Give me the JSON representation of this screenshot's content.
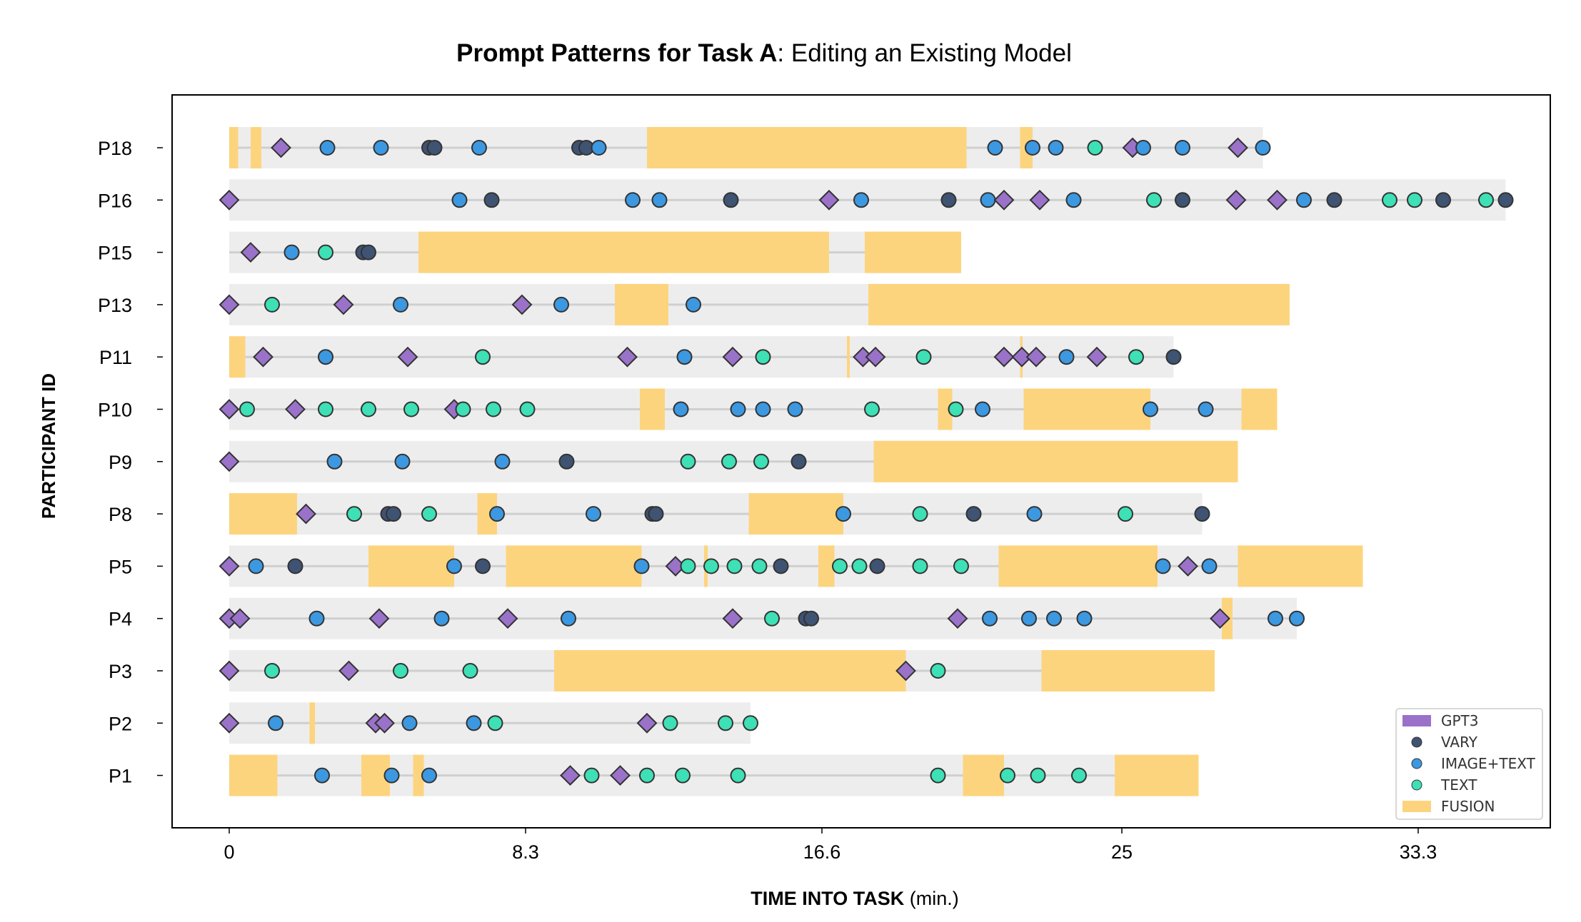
{
  "chart_data": {
    "type": "timeline",
    "title_bold": "Prompt Patterns for Task A",
    "title_rest": ": Editing an Existing Model",
    "xlabel_bold": "TIME INTO TASK",
    "xlabel_rest": " (min.)",
    "ylabel": "PARTICIPANT ID",
    "xlim": [
      -1.6,
      37.0
    ],
    "xticks": [
      0,
      8.3,
      16.6,
      25,
      33.3
    ],
    "xtick_labels": [
      "0",
      "8.3",
      "16.6",
      "25",
      "33.3"
    ],
    "colors": {
      "GPT3": "#9a72c9",
      "VARY": "#3f5373",
      "IMAGE+TEXT": "#3c98e0",
      "TEXT": "#3ee0b5",
      "FUSION": "#fdd47e",
      "band": "#ededed",
      "line": "#cfcfcf"
    },
    "legend": {
      "position": "bottom-right",
      "entries": [
        "GPT3",
        "VARY",
        "IMAGE+TEXT",
        "TEXT",
        "FUSION"
      ]
    },
    "participants": [
      {
        "id": "P18",
        "end": 28.95,
        "fusion": [
          [
            0,
            0.25
          ],
          [
            0.6,
            0.9
          ],
          [
            11.7,
            20.65
          ],
          [
            22.15,
            22.5
          ]
        ],
        "events": [
          [
            "GPT3",
            1.45
          ],
          [
            "IMAGE+TEXT",
            2.75
          ],
          [
            "IMAGE+TEXT",
            4.25
          ],
          [
            "VARY",
            5.6
          ],
          [
            "VARY",
            5.75
          ],
          [
            "IMAGE+TEXT",
            7.0
          ],
          [
            "VARY",
            9.8
          ],
          [
            "VARY",
            10.0
          ],
          [
            "IMAGE+TEXT",
            10.35
          ],
          [
            "IMAGE+TEXT",
            21.45
          ],
          [
            "IMAGE+TEXT",
            22.5
          ],
          [
            "IMAGE+TEXT",
            23.15
          ],
          [
            "TEXT",
            24.25
          ],
          [
            "GPT3",
            25.3
          ],
          [
            "IMAGE+TEXT",
            25.6
          ],
          [
            "IMAGE+TEXT",
            26.7
          ],
          [
            "GPT3",
            28.25
          ],
          [
            "IMAGE+TEXT",
            28.95
          ]
        ]
      },
      {
        "id": "P16",
        "end": 35.75,
        "fusion": [],
        "events": [
          [
            "GPT3",
            0.0
          ],
          [
            "IMAGE+TEXT",
            6.45
          ],
          [
            "VARY",
            7.35
          ],
          [
            "IMAGE+TEXT",
            11.3
          ],
          [
            "IMAGE+TEXT",
            12.05
          ],
          [
            "VARY",
            14.05
          ],
          [
            "GPT3",
            16.8
          ],
          [
            "IMAGE+TEXT",
            17.7
          ],
          [
            "VARY",
            20.15
          ],
          [
            "IMAGE+TEXT",
            21.25
          ],
          [
            "GPT3",
            21.7
          ],
          [
            "GPT3",
            22.7
          ],
          [
            "IMAGE+TEXT",
            23.65
          ],
          [
            "TEXT",
            25.9
          ],
          [
            "VARY",
            26.7
          ],
          [
            "GPT3",
            28.2
          ],
          [
            "GPT3",
            29.35
          ],
          [
            "IMAGE+TEXT",
            30.1
          ],
          [
            "VARY",
            30.95
          ],
          [
            "TEXT",
            32.5
          ],
          [
            "TEXT",
            33.2
          ],
          [
            "VARY",
            34.0
          ],
          [
            "TEXT",
            35.2
          ],
          [
            "VARY",
            35.75
          ]
        ]
      },
      {
        "id": "P15",
        "end": 20.5,
        "fusion": [
          [
            5.3,
            16.8
          ],
          [
            17.8,
            20.5
          ]
        ],
        "events": [
          [
            "GPT3",
            0.6
          ],
          [
            "IMAGE+TEXT",
            1.75
          ],
          [
            "TEXT",
            2.7
          ],
          [
            "VARY",
            3.75
          ],
          [
            "VARY",
            3.9
          ]
        ]
      },
      {
        "id": "P13",
        "end": 29.7,
        "fusion": [
          [
            10.8,
            12.3
          ],
          [
            17.9,
            29.7
          ]
        ],
        "events": [
          [
            "GPT3",
            0.0
          ],
          [
            "TEXT",
            1.2
          ],
          [
            "GPT3",
            3.2
          ],
          [
            "IMAGE+TEXT",
            4.8
          ],
          [
            "GPT3",
            8.2
          ],
          [
            "IMAGE+TEXT",
            9.3
          ],
          [
            "IMAGE+TEXT",
            13.0
          ]
        ]
      },
      {
        "id": "P11",
        "end": 26.45,
        "fusion": [
          [
            0,
            0.45
          ],
          [
            17.3,
            17.38
          ],
          [
            22.15,
            22.22
          ]
        ],
        "events": [
          [
            "GPT3",
            0.95
          ],
          [
            "IMAGE+TEXT",
            2.7
          ],
          [
            "GPT3",
            5.0
          ],
          [
            "TEXT",
            7.1
          ],
          [
            "GPT3",
            11.15
          ],
          [
            "IMAGE+TEXT",
            12.75
          ],
          [
            "GPT3",
            14.1
          ],
          [
            "TEXT",
            14.95
          ],
          [
            "GPT3",
            17.75
          ],
          [
            "GPT3",
            18.1
          ],
          [
            "TEXT",
            19.45
          ],
          [
            "GPT3",
            21.7
          ],
          [
            "GPT3",
            22.2
          ],
          [
            "GPT3",
            22.6
          ],
          [
            "IMAGE+TEXT",
            23.45
          ],
          [
            "GPT3",
            24.3
          ],
          [
            "TEXT",
            25.4
          ],
          [
            "VARY",
            26.45
          ]
        ]
      },
      {
        "id": "P10",
        "end": 29.35,
        "fusion": [
          [
            11.5,
            12.2
          ],
          [
            19.85,
            20.25
          ],
          [
            22.25,
            25.8
          ],
          [
            28.35,
            29.35
          ]
        ],
        "events": [
          [
            "GPT3",
            0.0
          ],
          [
            "TEXT",
            0.5
          ],
          [
            "GPT3",
            1.85
          ],
          [
            "TEXT",
            2.7
          ],
          [
            "TEXT",
            3.9
          ],
          [
            "TEXT",
            5.1
          ],
          [
            "GPT3",
            6.3
          ],
          [
            "TEXT",
            6.55
          ],
          [
            "TEXT",
            7.4
          ],
          [
            "TEXT",
            8.35
          ],
          [
            "IMAGE+TEXT",
            12.65
          ],
          [
            "IMAGE+TEXT",
            14.25
          ],
          [
            "IMAGE+TEXT",
            14.95
          ],
          [
            "IMAGE+TEXT",
            15.85
          ],
          [
            "TEXT",
            18.0
          ],
          [
            "TEXT",
            20.35
          ],
          [
            "IMAGE+TEXT",
            21.1
          ],
          [
            "IMAGE+TEXT",
            25.8
          ],
          [
            "IMAGE+TEXT",
            27.35
          ]
        ]
      },
      {
        "id": "P9",
        "end": 28.25,
        "fusion": [
          [
            18.05,
            28.25
          ]
        ],
        "events": [
          [
            "GPT3",
            0.0
          ],
          [
            "IMAGE+TEXT",
            2.95
          ],
          [
            "IMAGE+TEXT",
            4.85
          ],
          [
            "IMAGE+TEXT",
            7.65
          ],
          [
            "VARY",
            9.45
          ],
          [
            "TEXT",
            12.85
          ],
          [
            "TEXT",
            14.0
          ],
          [
            "TEXT",
            14.9
          ],
          [
            "VARY",
            15.95
          ]
        ]
      },
      {
        "id": "P8",
        "end": 27.25,
        "fusion": [
          [
            0,
            1.9
          ],
          [
            6.95,
            7.5
          ],
          [
            14.55,
            17.2
          ]
        ],
        "events": [
          [
            "GPT3",
            2.15
          ],
          [
            "TEXT",
            3.5
          ],
          [
            "VARY",
            4.45
          ],
          [
            "VARY",
            4.6
          ],
          [
            "TEXT",
            5.6
          ],
          [
            "IMAGE+TEXT",
            7.5
          ],
          [
            "IMAGE+TEXT",
            10.2
          ],
          [
            "VARY",
            11.85
          ],
          [
            "VARY",
            11.95
          ],
          [
            "IMAGE+TEXT",
            17.2
          ],
          [
            "TEXT",
            19.35
          ],
          [
            "VARY",
            20.85
          ],
          [
            "IMAGE+TEXT",
            22.55
          ],
          [
            "TEXT",
            25.1
          ],
          [
            "VARY",
            27.25
          ]
        ]
      },
      {
        "id": "P5",
        "end": 31.75,
        "fusion": [
          [
            3.9,
            6.3
          ],
          [
            7.75,
            11.55
          ],
          [
            13.3,
            13.4
          ],
          [
            16.5,
            16.95
          ],
          [
            21.55,
            26.0
          ],
          [
            28.25,
            31.75
          ]
        ],
        "events": [
          [
            "GPT3",
            0.0
          ],
          [
            "IMAGE+TEXT",
            0.75
          ],
          [
            "VARY",
            1.85
          ],
          [
            "IMAGE+TEXT",
            6.3
          ],
          [
            "VARY",
            7.1
          ],
          [
            "IMAGE+TEXT",
            11.55
          ],
          [
            "GPT3",
            12.5
          ],
          [
            "TEXT",
            12.85
          ],
          [
            "TEXT",
            13.5
          ],
          [
            "TEXT",
            14.15
          ],
          [
            "TEXT",
            14.85
          ],
          [
            "VARY",
            15.45
          ],
          [
            "TEXT",
            17.1
          ],
          [
            "TEXT",
            17.65
          ],
          [
            "VARY",
            18.15
          ],
          [
            "TEXT",
            19.35
          ],
          [
            "TEXT",
            20.5
          ],
          [
            "IMAGE+TEXT",
            26.15
          ],
          [
            "GPT3",
            26.85
          ],
          [
            "IMAGE+TEXT",
            27.45
          ]
        ]
      },
      {
        "id": "P4",
        "end": 29.9,
        "fusion": [
          [
            27.8,
            28.1
          ]
        ],
        "events": [
          [
            "GPT3",
            0.0
          ],
          [
            "GPT3",
            0.3
          ],
          [
            "IMAGE+TEXT",
            2.45
          ],
          [
            "GPT3",
            4.2
          ],
          [
            "IMAGE+TEXT",
            5.95
          ],
          [
            "GPT3",
            7.8
          ],
          [
            "IMAGE+TEXT",
            9.5
          ],
          [
            "GPT3",
            14.1
          ],
          [
            "TEXT",
            15.2
          ],
          [
            "VARY",
            16.15
          ],
          [
            "VARY",
            16.3
          ],
          [
            "GPT3",
            20.4
          ],
          [
            "IMAGE+TEXT",
            21.3
          ],
          [
            "IMAGE+TEXT",
            22.4
          ],
          [
            "IMAGE+TEXT",
            23.1
          ],
          [
            "IMAGE+TEXT",
            23.95
          ],
          [
            "GPT3",
            27.75
          ],
          [
            "IMAGE+TEXT",
            29.3
          ],
          [
            "IMAGE+TEXT",
            29.9
          ]
        ]
      },
      {
        "id": "P3",
        "end": 27.6,
        "fusion": [
          [
            9.1,
            18.95
          ],
          [
            22.75,
            27.6
          ]
        ],
        "events": [
          [
            "GPT3",
            0.0
          ],
          [
            "TEXT",
            1.2
          ],
          [
            "GPT3",
            3.35
          ],
          [
            "TEXT",
            4.8
          ],
          [
            "TEXT",
            6.75
          ],
          [
            "GPT3",
            18.95
          ],
          [
            "TEXT",
            19.85
          ]
        ]
      },
      {
        "id": "P2",
        "end": 14.6,
        "fusion": [
          [
            2.25,
            2.4
          ]
        ],
        "events": [
          [
            "GPT3",
            0.0
          ],
          [
            "IMAGE+TEXT",
            1.3
          ],
          [
            "GPT3",
            4.1
          ],
          [
            "GPT3",
            4.35
          ],
          [
            "IMAGE+TEXT",
            5.05
          ],
          [
            "IMAGE+TEXT",
            6.85
          ],
          [
            "TEXT",
            7.45
          ],
          [
            "GPT3",
            11.7
          ],
          [
            "TEXT",
            12.35
          ],
          [
            "TEXT",
            13.9
          ],
          [
            "TEXT",
            14.6
          ]
        ]
      },
      {
        "id": "P1",
        "end": 27.15,
        "fusion": [
          [
            0,
            1.35
          ],
          [
            3.7,
            4.5
          ],
          [
            5.15,
            5.45
          ],
          [
            20.55,
            21.7
          ],
          [
            24.8,
            27.15
          ]
        ],
        "events": [
          [
            "IMAGE+TEXT",
            2.6
          ],
          [
            "IMAGE+TEXT",
            4.55
          ],
          [
            "IMAGE+TEXT",
            5.6
          ],
          [
            "GPT3",
            9.55
          ],
          [
            "TEXT",
            10.15
          ],
          [
            "GPT3",
            10.95
          ],
          [
            "TEXT",
            11.7
          ],
          [
            "TEXT",
            12.7
          ],
          [
            "TEXT",
            14.25
          ],
          [
            "TEXT",
            19.85
          ],
          [
            "TEXT",
            21.8
          ],
          [
            "TEXT",
            22.65
          ],
          [
            "TEXT",
            23.8
          ]
        ]
      }
    ]
  }
}
